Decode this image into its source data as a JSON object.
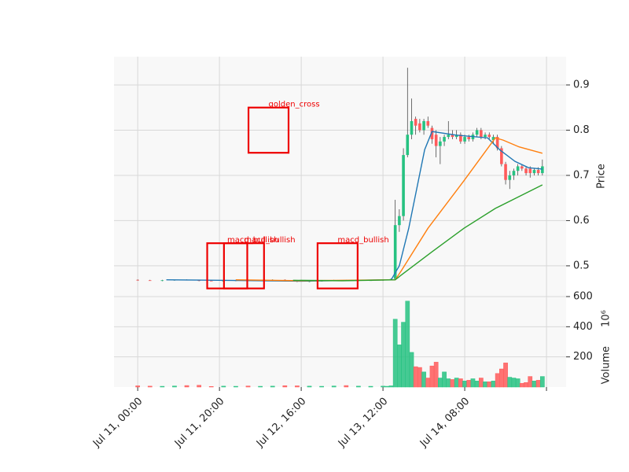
{
  "chart_data": {
    "type": "candlestick",
    "xlim": [
      -5.8,
      104.8
    ],
    "xticks": [
      {
        "value": 0,
        "label": "Jul 11, 00:00"
      },
      {
        "value": 20,
        "label": "Jul 11, 20:00"
      },
      {
        "value": 40,
        "label": "Jul 12, 16:00"
      },
      {
        "value": 60,
        "label": "Jul 13, 12:00"
      },
      {
        "value": 80,
        "label": "Jul 14, 08:00"
      },
      {
        "value": 100,
        "label": null
      }
    ],
    "ylabel": "Price",
    "ylim": [
      0.432,
      0.9626
    ],
    "yticks": [
      0.5,
      0.6,
      0.7,
      0.8,
      0.9
    ],
    "volume_label": "Volume",
    "volume_scale_label": "10⁶",
    "volume_ylim": [
      0,
      600
    ],
    "volume_ticks": [
      200,
      400,
      600
    ],
    "up_color": "#26c281",
    "down_color": "#ff5b5b",
    "grid": true,
    "x": [
      0,
      3,
      6,
      9,
      12,
      15,
      18,
      21,
      24,
      27,
      30,
      33,
      36,
      39,
      42,
      45,
      48,
      51,
      54,
      57,
      60,
      61,
      62,
      63,
      64,
      65,
      66,
      67,
      68,
      69,
      70,
      71,
      72,
      73,
      74,
      75,
      76,
      77,
      78,
      79,
      80,
      81,
      82,
      83,
      84,
      85,
      86,
      87,
      88,
      89,
      90,
      91,
      92,
      93,
      94,
      95,
      96,
      97,
      98,
      99
    ],
    "open": [
      0.469,
      0.468,
      0.467,
      0.468,
      0.469,
      0.468,
      0.467,
      0.466,
      0.467,
      0.468,
      0.467,
      0.468,
      0.469,
      0.467,
      0.465,
      0.466,
      0.467,
      0.468,
      0.467,
      0.468,
      0.468,
      0.469,
      0.47,
      0.471,
      0.59,
      0.61,
      0.745,
      0.79,
      0.825,
      0.815,
      0.8,
      0.82,
      0.805,
      0.79,
      0.765,
      0.775,
      0.785,
      0.79,
      0.785,
      0.79,
      0.775,
      0.785,
      0.78,
      0.79,
      0.8,
      0.785,
      0.79,
      0.778,
      0.785,
      0.76,
      0.725,
      0.69,
      0.7,
      0.71,
      0.72,
      0.715,
      0.715,
      0.705,
      0.712,
      0.705
    ],
    "high": [
      0.47,
      0.469,
      0.469,
      0.469,
      0.47,
      0.469,
      0.468,
      0.468,
      0.469,
      0.469,
      0.468,
      0.47,
      0.47,
      0.468,
      0.467,
      0.468,
      0.469,
      0.469,
      0.469,
      0.469,
      0.469,
      0.47,
      0.472,
      0.646,
      0.625,
      0.76,
      0.938,
      0.87,
      0.83,
      0.825,
      0.825,
      0.83,
      0.81,
      0.8,
      0.785,
      0.79,
      0.82,
      0.8,
      0.8,
      0.795,
      0.79,
      0.79,
      0.795,
      0.805,
      0.805,
      0.795,
      0.795,
      0.79,
      0.79,
      0.765,
      0.73,
      0.71,
      0.715,
      0.725,
      0.725,
      0.72,
      0.72,
      0.715,
      0.718,
      0.735
    ],
    "low": [
      0.467,
      0.467,
      0.466,
      0.467,
      0.468,
      0.466,
      0.466,
      0.465,
      0.466,
      0.467,
      0.466,
      0.467,
      0.467,
      0.464,
      0.464,
      0.465,
      0.466,
      0.466,
      0.466,
      0.467,
      0.467,
      0.468,
      0.469,
      0.47,
      0.575,
      0.6,
      0.74,
      0.78,
      0.79,
      0.795,
      0.79,
      0.805,
      0.77,
      0.74,
      0.725,
      0.765,
      0.78,
      0.78,
      0.78,
      0.77,
      0.77,
      0.775,
      0.775,
      0.785,
      0.78,
      0.78,
      0.78,
      0.77,
      0.755,
      0.72,
      0.68,
      0.67,
      0.69,
      0.7,
      0.71,
      0.7,
      0.695,
      0.7,
      0.7,
      0.7
    ],
    "close": [
      0.468,
      0.467,
      0.468,
      0.469,
      0.468,
      0.467,
      0.466,
      0.467,
      0.468,
      0.467,
      0.468,
      0.469,
      0.467,
      0.465,
      0.466,
      0.467,
      0.468,
      0.467,
      0.468,
      0.468,
      0.469,
      0.47,
      0.471,
      0.59,
      0.61,
      0.745,
      0.79,
      0.82,
      0.81,
      0.8,
      0.82,
      0.81,
      0.78,
      0.765,
      0.775,
      0.785,
      0.79,
      0.785,
      0.79,
      0.775,
      0.785,
      0.78,
      0.79,
      0.8,
      0.785,
      0.79,
      0.785,
      0.785,
      0.76,
      0.725,
      0.69,
      0.7,
      0.71,
      0.72,
      0.715,
      0.705,
      0.705,
      0.712,
      0.705,
      0.72
    ],
    "volume": [
      8,
      6,
      5,
      7,
      10,
      12,
      4,
      6,
      5,
      7,
      5,
      6,
      9,
      8,
      6,
      5,
      7,
      10,
      6,
      5,
      6,
      5,
      8,
      450,
      280,
      430,
      570,
      230,
      135,
      130,
      100,
      60,
      140,
      165,
      60,
      100,
      55,
      50,
      60,
      55,
      40,
      45,
      55,
      40,
      60,
      35,
      35,
      40,
      90,
      120,
      160,
      65,
      60,
      55,
      25,
      30,
      70,
      40,
      45,
      70
    ],
    "lines": [
      {
        "color": "#1f77b4",
        "x": [
          7,
          20,
          40,
          62,
          64,
          66.3,
          70.2,
          72,
          78,
          85.6,
          88.5,
          92.3,
          95.6,
          99
        ],
        "values": [
          0.469,
          0.468,
          0.466,
          0.469,
          0.5,
          0.583,
          0.757,
          0.797,
          0.789,
          0.783,
          0.757,
          0.731,
          0.717,
          0.714
        ]
      },
      {
        "color": "#ff7f0e",
        "x": [
          24,
          40,
          63,
          64.4,
          71,
          79.8,
          87.5,
          89.4,
          93.3,
          99
        ],
        "values": [
          0.469,
          0.467,
          0.469,
          0.488,
          0.583,
          0.688,
          0.783,
          0.778,
          0.763,
          0.749
        ]
      },
      {
        "color": "#2ca02c",
        "x": [
          38,
          50,
          63,
          64.4,
          72,
          79.8,
          87.5,
          99
        ],
        "values": [
          0.468,
          0.467,
          0.469,
          0.479,
          0.531,
          0.583,
          0.627,
          0.679
        ]
      }
    ],
    "annotations": [
      {
        "text": "macd_bullish",
        "x": 21.9,
        "y": 0.5
      },
      {
        "text": "macd_bullish",
        "x": 26,
        "y": 0.5
      },
      {
        "text": "golden_cross",
        "x": 32,
        "y": 0.8
      },
      {
        "text": "macd_bullish",
        "x": 48.9,
        "y": 0.5
      }
    ]
  }
}
